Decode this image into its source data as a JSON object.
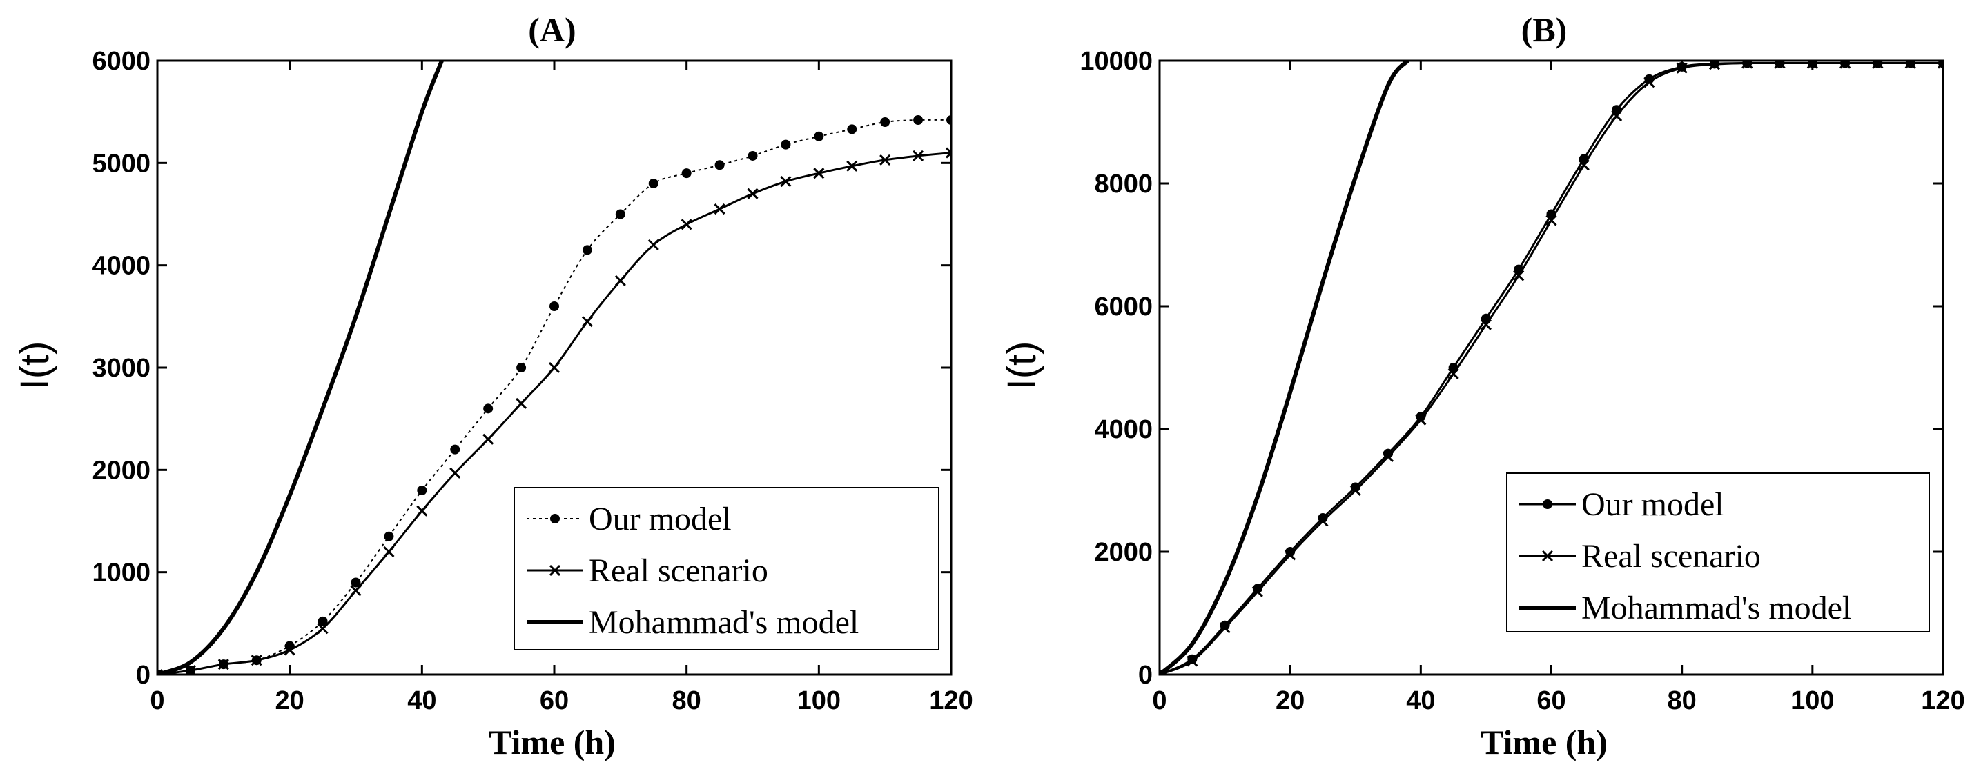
{
  "chart_data": [
    {
      "type": "line",
      "title": "(A)",
      "xlabel": "Time (h)",
      "ylabel": "I(t)",
      "xlim": [
        0,
        120
      ],
      "ylim": [
        0,
        6000
      ],
      "xticks": [
        "0",
        "20",
        "40",
        "60",
        "80",
        "100",
        "120"
      ],
      "yticks": [
        "0",
        "1000",
        "2000",
        "3000",
        "4000",
        "5000",
        "6000"
      ],
      "legend": [
        "Our model",
        "Real scenario",
        "Mohammad's model"
      ],
      "series": [
        {
          "name": "Our model",
          "style": "dotted-dots",
          "x": [
            0,
            5,
            10,
            15,
            20,
            25,
            30,
            35,
            40,
            45,
            50,
            55,
            60,
            65,
            70,
            75,
            80,
            85,
            90,
            95,
            100,
            105,
            110,
            115,
            120
          ],
          "values": [
            0,
            40,
            100,
            140,
            280,
            520,
            900,
            1350,
            1800,
            2200,
            2600,
            3000,
            3600,
            4150,
            4500,
            4800,
            4900,
            4980,
            5070,
            5180,
            5260,
            5330,
            5400,
            5420,
            5420
          ]
        },
        {
          "name": "Real scenario",
          "style": "solid-x",
          "x": [
            0,
            5,
            10,
            15,
            20,
            25,
            30,
            35,
            40,
            45,
            50,
            55,
            60,
            65,
            70,
            75,
            80,
            85,
            90,
            95,
            100,
            105,
            110,
            115,
            120
          ],
          "values": [
            0,
            40,
            100,
            140,
            240,
            450,
            820,
            1200,
            1600,
            1970,
            2300,
            2650,
            3000,
            3450,
            3850,
            4200,
            4400,
            4550,
            4700,
            4820,
            4900,
            4970,
            5030,
            5070,
            5100
          ]
        },
        {
          "name": "Mohammad's model",
          "style": "solid-thick",
          "x": [
            0,
            5,
            10,
            15,
            20,
            25,
            30,
            35,
            40,
            43
          ],
          "values": [
            0,
            120,
            450,
            1000,
            1750,
            2600,
            3500,
            4500,
            5500,
            6000
          ]
        }
      ]
    },
    {
      "type": "line",
      "title": "(B)",
      "xlabel": "Time (h)",
      "ylabel": "I(t)",
      "xlim": [
        0,
        120
      ],
      "ylim": [
        0,
        10000
      ],
      "xticks": [
        "0",
        "20",
        "40",
        "60",
        "80",
        "100",
        "120"
      ],
      "yticks": [
        "0",
        "2000",
        "4000",
        "6000",
        "8000",
        "10000"
      ],
      "legend": [
        "Our model",
        "Real scenario",
        "Mohammad's model"
      ],
      "series": [
        {
          "name": "Our model",
          "style": "solid-dots",
          "x": [
            0,
            5,
            10,
            15,
            20,
            25,
            30,
            35,
            40,
            45,
            50,
            55,
            60,
            65,
            70,
            75,
            80,
            85,
            90,
            95,
            100,
            105,
            110,
            115,
            120
          ],
          "values": [
            0,
            250,
            800,
            1400,
            2000,
            2550,
            3050,
            3600,
            4200,
            5000,
            5800,
            6600,
            7500,
            8400,
            9200,
            9700,
            9900,
            9950,
            9960,
            9960,
            9960,
            9960,
            9960,
            9960,
            9960
          ]
        },
        {
          "name": "Real scenario",
          "style": "solid-x",
          "x": [
            0,
            5,
            10,
            15,
            20,
            25,
            30,
            35,
            40,
            45,
            50,
            55,
            60,
            65,
            70,
            75,
            80,
            85,
            90,
            95,
            100,
            105,
            110,
            115,
            120
          ],
          "values": [
            0,
            220,
            760,
            1350,
            1950,
            2500,
            3000,
            3550,
            4150,
            4900,
            5700,
            6500,
            7400,
            8300,
            9100,
            9650,
            9880,
            9940,
            9960,
            9960,
            9960,
            9960,
            9960,
            9960,
            9960
          ]
        },
        {
          "name": "Mohammad's model",
          "style": "solid-thick",
          "x": [
            0,
            5,
            10,
            15,
            20,
            25,
            30,
            35,
            38
          ],
          "values": [
            0,
            500,
            1500,
            2900,
            4600,
            6400,
            8100,
            9600,
            10000
          ]
        }
      ]
    }
  ]
}
